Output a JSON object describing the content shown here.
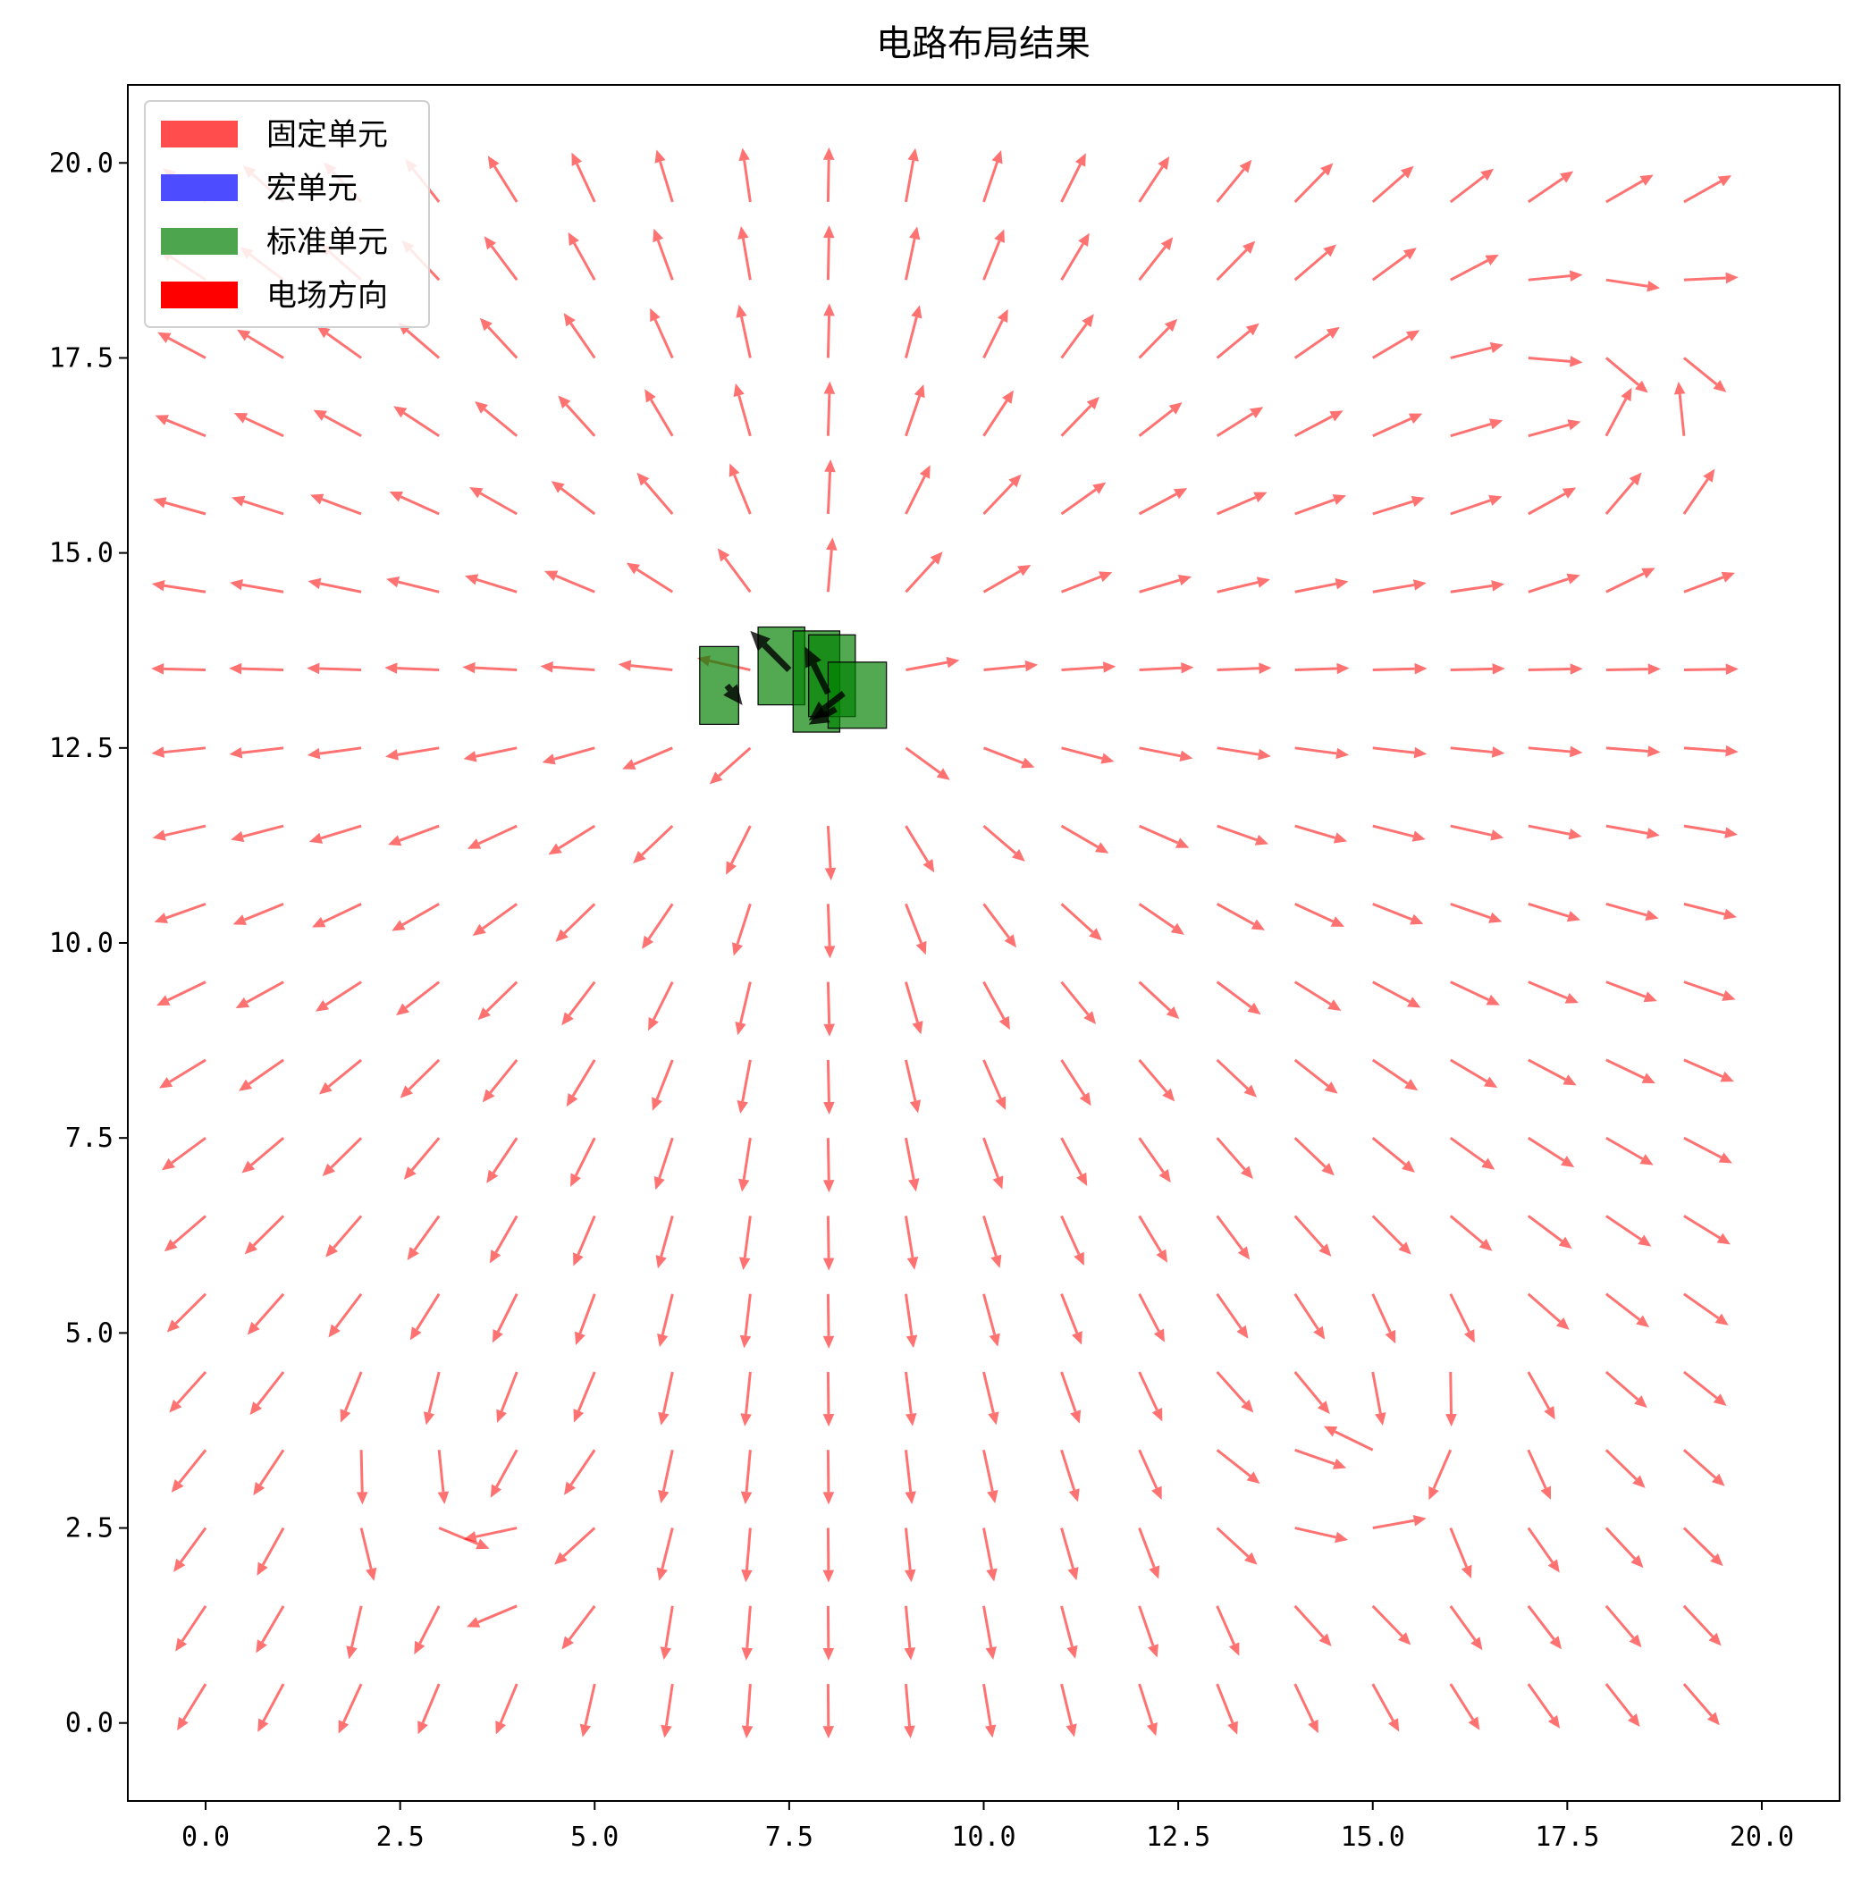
{
  "chart_data": {
    "type": "quiver",
    "title": "电路布局结果",
    "xlabel": "",
    "ylabel": "",
    "xlim": [
      -1.0,
      21.0
    ],
    "ylim": [
      -1.0,
      21.0
    ],
    "grid": false,
    "x_ticks": [
      0.0,
      2.5,
      5.0,
      7.5,
      10.0,
      12.5,
      15.0,
      17.5,
      20.0
    ],
    "y_ticks": [
      0.0,
      2.5,
      5.0,
      7.5,
      10.0,
      12.5,
      15.0,
      17.5,
      20.0
    ],
    "x_tick_labels": [
      "0.0",
      "2.5",
      "5.0",
      "7.5",
      "10.0",
      "12.5",
      "15.0",
      "17.5",
      "20.0"
    ],
    "y_tick_labels": [
      "0.0",
      "2.5",
      "5.0",
      "7.5",
      "10.0",
      "12.5",
      "15.0",
      "17.5",
      "20.0"
    ],
    "legend": {
      "placement": "top-left",
      "entries": [
        {
          "label": "固定单元",
          "color": "#ff4d4d"
        },
        {
          "label": "宏单元",
          "color": "#4d4dff"
        },
        {
          "label": "标准单元",
          "color": "#4da64d"
        },
        {
          "label": "电场方向",
          "color": "#ff0000"
        }
      ]
    },
    "field": {
      "grid_x_start": 0.0,
      "grid_x_end": 19.5,
      "grid_x_step": 1.0,
      "grid_y_start": 0.5,
      "grid_y_end": 19.5,
      "grid_y_step": 1.0,
      "arrow_color": "#ff0000",
      "arrow_alpha": 0.55,
      "arrow_length": 0.7,
      "source_center": [
        7.9,
        13.3
      ],
      "vortices": [
        {
          "center": [
            18.0,
            16.7
          ],
          "radius": 1.3
        },
        {
          "center": [
            14.8,
            3.7
          ],
          "radius": 1.3
        },
        {
          "center": [
            3.5,
            2.8
          ],
          "radius": 1.2
        }
      ]
    },
    "standard_cells": [
      {
        "x": 6.35,
        "y": 12.8,
        "w": 0.5,
        "h": 1.0
      },
      {
        "x": 7.1,
        "y": 13.05,
        "w": 0.6,
        "h": 1.0
      },
      {
        "x": 7.55,
        "y": 12.7,
        "w": 0.6,
        "h": 1.3
      },
      {
        "x": 7.75,
        "y": 12.9,
        "w": 0.6,
        "h": 1.05
      },
      {
        "x": 8.0,
        "y": 12.75,
        "w": 0.75,
        "h": 0.85
      }
    ],
    "cell_force_arrows": [
      {
        "x": 6.7,
        "y": 13.3,
        "dx": 0.2,
        "dy": -0.25
      },
      {
        "x": 7.5,
        "y": 13.5,
        "dx": -0.5,
        "dy": 0.5
      },
      {
        "x": 8.0,
        "y": 13.2,
        "dx": -0.3,
        "dy": 0.6
      },
      {
        "x": 8.1,
        "y": 13.0,
        "dx": -0.35,
        "dy": -0.2
      },
      {
        "x": 8.2,
        "y": 13.2,
        "dx": -0.45,
        "dy": -0.35
      }
    ]
  }
}
